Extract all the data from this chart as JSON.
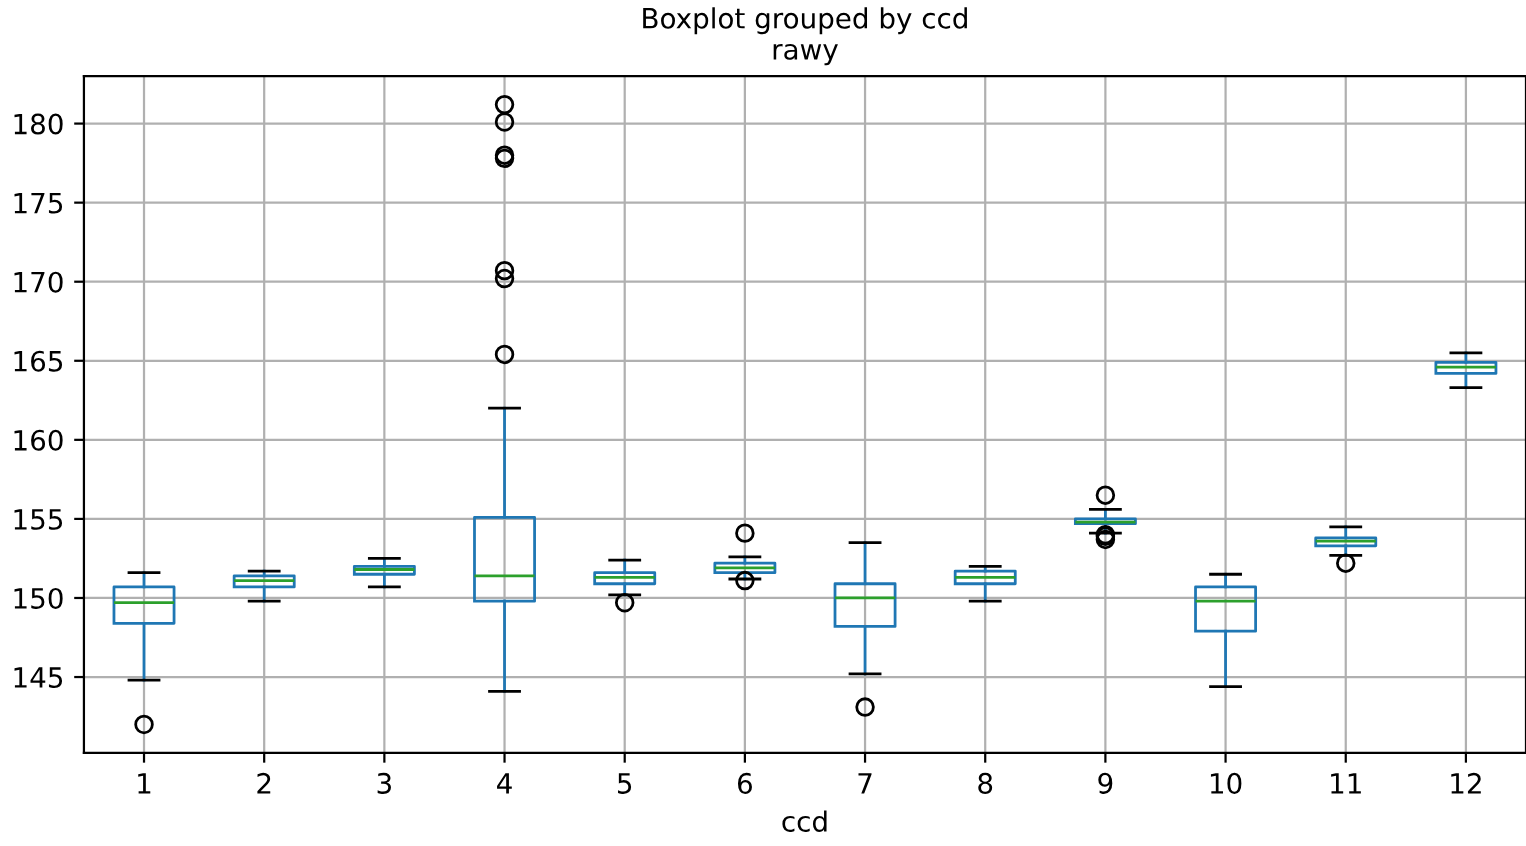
{
  "chart_data": {
    "type": "box",
    "title": "Boxplot grouped by ccd\nrawy",
    "xlabel": "ccd",
    "categories": [
      "1",
      "2",
      "3",
      "4",
      "5",
      "6",
      "7",
      "8",
      "9",
      "10",
      "11",
      "12"
    ],
    "boxes": [
      {
        "low": 144.8,
        "q1": 148.4,
        "median": 149.7,
        "q3": 150.7,
        "high": 151.6,
        "outliers": [
          142.0
        ]
      },
      {
        "low": 149.8,
        "q1": 150.7,
        "median": 151.1,
        "q3": 151.4,
        "high": 151.7
      },
      {
        "low": 150.7,
        "q1": 151.5,
        "median": 151.8,
        "q3": 152.0,
        "high": 152.5
      },
      {
        "low": 144.1,
        "q1": 149.8,
        "median": 151.4,
        "q3": 155.1,
        "high": 162.0,
        "outliers": [
          181.2,
          180.1,
          178.0,
          177.8,
          170.7,
          170.2,
          165.4
        ]
      },
      {
        "low": 150.2,
        "q1": 150.9,
        "median": 151.3,
        "q3": 151.6,
        "high": 152.4,
        "outliers": [
          149.7
        ]
      },
      {
        "low": 151.2,
        "q1": 151.6,
        "median": 151.9,
        "q3": 152.2,
        "high": 152.6,
        "outliers": [
          154.1,
          151.1
        ]
      },
      {
        "low": 145.2,
        "q1": 148.2,
        "median": 150.0,
        "q3": 150.9,
        "high": 153.5,
        "outliers": [
          143.1
        ]
      },
      {
        "low": 149.8,
        "q1": 150.9,
        "median": 151.3,
        "q3": 151.7,
        "high": 152.0
      },
      {
        "low": 154.1,
        "q1": 154.7,
        "median": 154.8,
        "q3": 155.0,
        "high": 155.6,
        "outliers": [
          156.5,
          153.9,
          153.7,
          154.0
        ]
      },
      {
        "low": 144.4,
        "q1": 147.9,
        "median": 149.8,
        "q3": 150.7,
        "high": 151.5
      },
      {
        "low": 152.7,
        "q1": 153.3,
        "median": 153.6,
        "q3": 153.8,
        "high": 154.5,
        "outliers": [
          152.2
        ]
      },
      {
        "low": 163.3,
        "q1": 164.2,
        "median": 164.6,
        "q3": 164.9,
        "high": 165.5
      }
    ],
    "ylim": [
      140.2,
      183.0
    ],
    "yticks": [
      145,
      150,
      155,
      160,
      165,
      170,
      175,
      180
    ],
    "grid": true
  }
}
